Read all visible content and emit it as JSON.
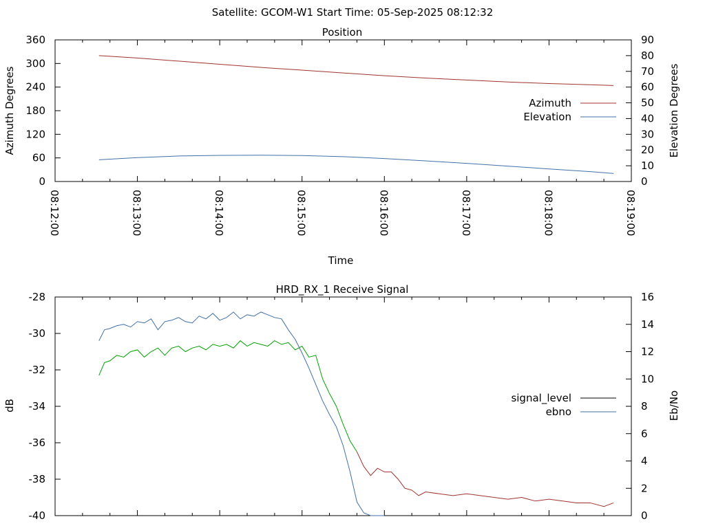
{
  "header": {
    "title": "Satellite: GCOM-W1    Start Time: 05-Sep-2025 08:12:32"
  },
  "chart_data": [
    {
      "type": "line",
      "title": "Position",
      "xlabel": "Time",
      "ylabel": "Azimuth Degrees",
      "y2label": "Elevation Degrees",
      "xlim": [
        "08:12:00",
        "08:19:00"
      ],
      "x_ticks": [
        "08:12:00",
        "08:13:00",
        "08:14:00",
        "08:15:00",
        "08:16:00",
        "08:17:00",
        "08:18:00",
        "08:19:00"
      ],
      "ylim": [
        0,
        360
      ],
      "y_ticks": [
        "0",
        "60",
        "120",
        "180",
        "240",
        "300",
        "360"
      ],
      "y2lim": [
        0,
        90
      ],
      "y2_ticks": [
        "0",
        "10",
        "20",
        "30",
        "40",
        "50",
        "60",
        "70",
        "80",
        "90"
      ],
      "legend_position": "right",
      "series": [
        {
          "name": "Azimuth",
          "axis": "y",
          "color": "#a0322d",
          "x": [
            "08:12:32",
            "08:13:00",
            "08:13:30",
            "08:14:00",
            "08:14:30",
            "08:15:00",
            "08:15:30",
            "08:16:00",
            "08:16:30",
            "08:17:00",
            "08:17:30",
            "08:18:00",
            "08:18:30",
            "08:18:47"
          ],
          "values": [
            320,
            314,
            306,
            298,
            290,
            283,
            276,
            269,
            263,
            258,
            253,
            249,
            246,
            244
          ]
        },
        {
          "name": "Elevation",
          "axis": "y2",
          "color": "#3f6fa8",
          "x": [
            "08:12:32",
            "08:13:00",
            "08:13:30",
            "08:14:00",
            "08:14:30",
            "08:15:00",
            "08:15:30",
            "08:16:00",
            "08:16:30",
            "08:17:00",
            "08:17:30",
            "08:18:00",
            "08:18:30",
            "08:18:47"
          ],
          "values": [
            13.8,
            15.2,
            16.2,
            16.6,
            16.7,
            16.5,
            15.8,
            14.6,
            13.1,
            11.5,
            9.8,
            8.0,
            6.3,
            5.1
          ]
        }
      ]
    },
    {
      "type": "line",
      "title": "HRD_RX_1 Receive Signal",
      "ylabel": "dB",
      "y2label": "Eb/No",
      "xlim": [
        "08:12:00",
        "08:19:00"
      ],
      "ylim": [
        -40,
        -28
      ],
      "y_ticks": [
        "-40",
        "-38",
        "-36",
        "-34",
        "-32",
        "-30",
        "-28"
      ],
      "y2lim": [
        0,
        16
      ],
      "y2_ticks": [
        "0",
        "2",
        "4",
        "6",
        "8",
        "10",
        "12",
        "14",
        "16"
      ],
      "legend_position": "right",
      "series": [
        {
          "name": "signal_level",
          "axis": "y",
          "color": "#a0322d",
          "legend_color": "#000000",
          "highlight_color": "#00a000",
          "highlight_until": "08:15:40",
          "x": [
            "08:12:32",
            "08:12:36",
            "08:12:40",
            "08:12:45",
            "08:12:50",
            "08:12:55",
            "08:13:00",
            "08:13:05",
            "08:13:10",
            "08:13:15",
            "08:13:20",
            "08:13:25",
            "08:13:30",
            "08:13:35",
            "08:13:40",
            "08:13:45",
            "08:13:50",
            "08:13:55",
            "08:14:00",
            "08:14:05",
            "08:14:10",
            "08:14:15",
            "08:14:20",
            "08:14:25",
            "08:14:30",
            "08:14:35",
            "08:14:40",
            "08:14:45",
            "08:14:50",
            "08:14:55",
            "08:15:00",
            "08:15:05",
            "08:15:10",
            "08:15:15",
            "08:15:20",
            "08:15:25",
            "08:15:30",
            "08:15:35",
            "08:15:40",
            "08:15:45",
            "08:15:50",
            "08:15:55",
            "08:16:00",
            "08:16:05",
            "08:16:10",
            "08:16:15",
            "08:16:20",
            "08:16:25",
            "08:16:30",
            "08:16:40",
            "08:16:50",
            "08:17:00",
            "08:17:10",
            "08:17:20",
            "08:17:30",
            "08:17:40",
            "08:17:50",
            "08:18:00",
            "08:18:10",
            "08:18:20",
            "08:18:30",
            "08:18:40",
            "08:18:47"
          ],
          "values": [
            -32.3,
            -31.6,
            -31.5,
            -31.2,
            -31.3,
            -31.0,
            -30.9,
            -31.3,
            -31.0,
            -30.8,
            -31.2,
            -30.8,
            -30.7,
            -31.0,
            -30.8,
            -30.7,
            -30.9,
            -30.6,
            -30.7,
            -30.6,
            -30.8,
            -30.4,
            -30.7,
            -30.5,
            -30.6,
            -30.7,
            -30.4,
            -30.6,
            -30.5,
            -30.9,
            -30.7,
            -31.3,
            -31.2,
            -32.5,
            -33.3,
            -34.0,
            -35.0,
            -35.9,
            -36.5,
            -37.3,
            -37.8,
            -37.4,
            -37.6,
            -37.6,
            -38.0,
            -38.5,
            -38.6,
            -38.9,
            -38.7,
            -38.8,
            -38.9,
            -38.8,
            -38.9,
            -39.0,
            -39.1,
            -39.0,
            -39.2,
            -39.1,
            -39.2,
            -39.3,
            -39.3,
            -39.5,
            -39.3
          ]
        },
        {
          "name": "ebno",
          "axis": "y2",
          "color": "#3f6fa8",
          "x": [
            "08:12:32",
            "08:12:36",
            "08:12:40",
            "08:12:45",
            "08:12:50",
            "08:12:55",
            "08:13:00",
            "08:13:05",
            "08:13:10",
            "08:13:15",
            "08:13:20",
            "08:13:25",
            "08:13:30",
            "08:13:35",
            "08:13:40",
            "08:13:45",
            "08:13:50",
            "08:13:55",
            "08:14:00",
            "08:14:05",
            "08:14:10",
            "08:14:15",
            "08:14:20",
            "08:14:25",
            "08:14:30",
            "08:14:35",
            "08:14:40",
            "08:14:45",
            "08:14:50",
            "08:14:55",
            "08:15:00",
            "08:15:05",
            "08:15:10",
            "08:15:15",
            "08:15:20",
            "08:15:25",
            "08:15:30",
            "08:15:35",
            "08:15:40",
            "08:15:45",
            "08:15:50",
            "08:15:55",
            "08:16:00"
          ],
          "values": [
            12.8,
            13.6,
            13.7,
            13.9,
            14.0,
            13.8,
            14.2,
            14.1,
            14.4,
            13.6,
            14.2,
            14.3,
            14.5,
            14.2,
            14.1,
            14.6,
            14.4,
            14.8,
            14.3,
            14.5,
            14.9,
            14.4,
            14.7,
            14.6,
            14.9,
            14.7,
            14.5,
            14.4,
            13.6,
            12.9,
            11.9,
            10.8,
            9.6,
            8.4,
            7.4,
            6.5,
            5.1,
            3.2,
            1.0,
            0.2,
            0.0,
            0.0,
            0.0
          ]
        }
      ]
    }
  ]
}
